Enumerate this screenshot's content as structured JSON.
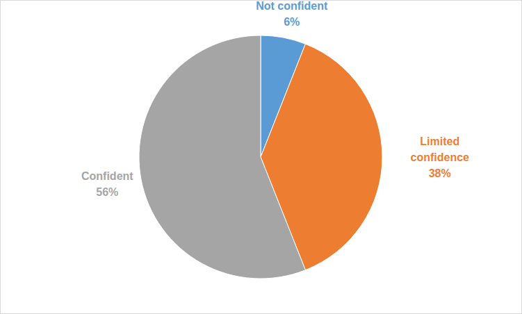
{
  "chart_data": {
    "type": "pie",
    "categories": [
      "Not confident",
      "Limited confidence",
      "Confident"
    ],
    "values": [
      6,
      38,
      56
    ],
    "value_labels": [
      "6%",
      "38%",
      "56%"
    ],
    "colors": [
      "#5b9bd5",
      "#ed7d31",
      "#a5a5a5"
    ],
    "data_labels": true
  }
}
